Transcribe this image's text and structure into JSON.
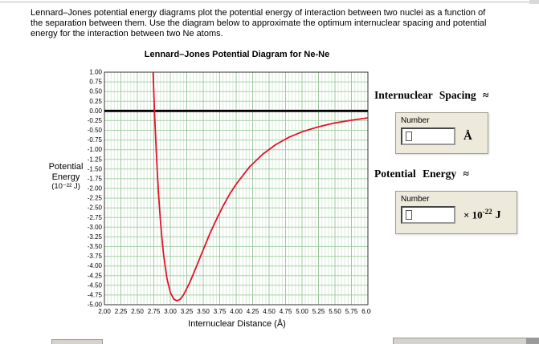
{
  "intro": {
    "text": "Lennard–Jones potential energy diagrams plot the potential energy of interaction between two nuclei as a function of the separation between them. Use the diagram below to approximate the optimum internuclear spacing and potential energy for the interaction between two Ne atoms."
  },
  "chart_data": {
    "type": "line",
    "title": "Lennard–Jones Potential Diagram for Ne-Ne",
    "xlabel": "Internuclear Distance (Å)",
    "ylabel": "Potential Energy (10⁻²² J)",
    "ylabel_lines": [
      "Potential",
      "Energy",
      "(10⁻²² J)"
    ],
    "xlim": [
      2.0,
      6.0
    ],
    "ylim": [
      -5.0,
      1.0
    ],
    "x_tick_step": 0.25,
    "y_tick_step": 0.25,
    "x_minor_step": 0.05,
    "zero_line_y": 0.0,
    "grid": true,
    "legend": "none",
    "colors": {
      "grid_minor": "#d8ecd8",
      "grid_major": "#9cc89c",
      "grid_horizontal": "#a9d3a9",
      "plot_border": "#333333",
      "zero_line": "#000000"
    },
    "series": [
      {
        "name": "Ne–Ne potential",
        "color": "#e8112d",
        "points": [
          [
            2.7,
            3.15
          ],
          [
            2.72,
            1.96
          ],
          [
            2.74,
            0.91
          ],
          [
            2.76,
            0.0
          ],
          [
            2.78,
            -0.8
          ],
          [
            2.8,
            -1.49
          ],
          [
            2.82,
            -2.09
          ],
          [
            2.85,
            -2.83
          ],
          [
            2.88,
            -3.42
          ],
          [
            2.9,
            -3.74
          ],
          [
            2.95,
            -4.33
          ],
          [
            3.0,
            -4.68
          ],
          [
            3.05,
            -4.85
          ],
          [
            3.1,
            -4.9
          ],
          [
            3.15,
            -4.86
          ],
          [
            3.2,
            -4.75
          ],
          [
            3.3,
            -4.41
          ],
          [
            3.4,
            -4.0
          ],
          [
            3.5,
            -3.58
          ],
          [
            3.6,
            -3.17
          ],
          [
            3.7,
            -2.8
          ],
          [
            3.8,
            -2.46
          ],
          [
            3.9,
            -2.15
          ],
          [
            4.0,
            -1.89
          ],
          [
            4.2,
            -1.45
          ],
          [
            4.4,
            -1.12
          ],
          [
            4.6,
            -0.87
          ],
          [
            4.8,
            -0.68
          ],
          [
            5.0,
            -0.54
          ],
          [
            5.25,
            -0.41
          ],
          [
            5.5,
            -0.31
          ],
          [
            5.75,
            -0.24
          ],
          [
            6.0,
            -0.18
          ]
        ]
      }
    ],
    "approx_reading": {
      "optimum_spacing_angstrom": 3.1,
      "minimum_energy_1e22_J": -4.9
    }
  },
  "answers": {
    "spacing": {
      "heading": "Internuclear Spacing ≈",
      "field_label": "Number",
      "value": "",
      "unit": "Å"
    },
    "energy": {
      "heading": "Potential Energy ≈",
      "field_label": "Number",
      "value": "",
      "unit_base": "× 10",
      "unit_exponent": "-22",
      "unit_suffix": "J"
    }
  }
}
